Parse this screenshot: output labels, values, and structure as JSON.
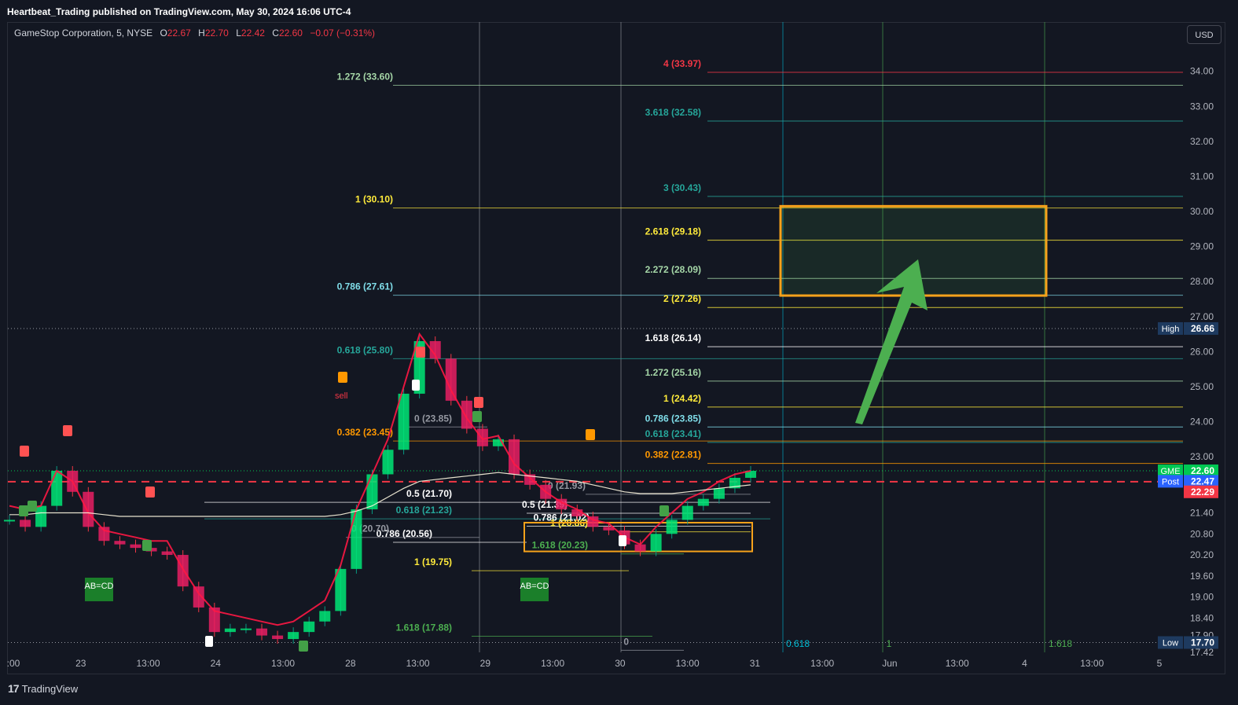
{
  "header": {
    "publish_line": "Heartbeat_Trading published on TradingView.com, May 30, 2024 16:06 UTC-4"
  },
  "legend": {
    "symbol": "GameStop Corporation, 5, NYSE",
    "open_label": "O",
    "open": "22.67",
    "high_label": "H",
    "high": "22.70",
    "low_label": "L",
    "low": "22.42",
    "close_label": "C",
    "close": "22.60",
    "change": "−0.07 (−0.31%)"
  },
  "toolbar": {
    "currency": "USD"
  },
  "footer": {
    "brand": "TradingView",
    "logo_glyph": "17"
  },
  "colors": {
    "background": "#131722",
    "grid": "#2a2e39",
    "up": "#089981",
    "down": "#f23645",
    "price_tag": "#00c853",
    "post_tag": "#2962ff",
    "target_box": "#f7a21b",
    "arrow": "#4caf50"
  },
  "chart_data": {
    "type": "candlestick",
    "symbol": "GME",
    "timeframe": "5",
    "currency": "USD",
    "ylim": [
      17.42,
      34.8
    ],
    "y_ticks": [
      "34.00",
      "33.00",
      "32.00",
      "31.00",
      "30.00",
      "29.00",
      "28.00",
      "27.00",
      "26.00",
      "25.00",
      "24.00",
      "23.00",
      "21.40",
      "20.80",
      "20.20",
      "19.60",
      "19.00",
      "18.40",
      "17.90",
      "17.42"
    ],
    "x_ticks": [
      ":00",
      "23",
      "13:00",
      "24",
      "13:00",
      "28",
      "13:00",
      "29",
      "13:00",
      "30",
      "13:00",
      "31",
      "13:00",
      "Jun",
      "13:00",
      "4",
      "13:00",
      "5"
    ],
    "price_tags": [
      {
        "label": "High",
        "value": "26.66"
      },
      {
        "label": "GME",
        "value": "22.60"
      },
      {
        "label": "Post",
        "value": "22.47"
      },
      {
        "label": "",
        "value": "22.29"
      },
      {
        "label": "Low",
        "value": "17.70"
      }
    ],
    "fib_levels": [
      {
        "label": "1.272 (33.60)",
        "value": 33.6,
        "color": "#a5d6a7"
      },
      {
        "label": "1 (30.10)",
        "value": 30.1,
        "color": "#ffeb3b"
      },
      {
        "label": "0.786 (27.61)",
        "value": 27.61,
        "color": "#80deea"
      },
      {
        "label": "0.618 (25.80)",
        "value": 25.8,
        "color": "#26a69a"
      },
      {
        "label": "0.382 (23.45)",
        "value": 23.45,
        "color": "#ff9800"
      },
      {
        "label": "0 (23.85)",
        "value": 23.85,
        "color": "#9598a1"
      },
      {
        "label": "0.5 (21.70)",
        "value": 21.7,
        "color": "#ffffff"
      },
      {
        "label": "0.618 (21.23)",
        "value": 21.23,
        "color": "#26a69a"
      },
      {
        "label": "0.786 (20.56)",
        "value": 20.56,
        "color": "#ffffff"
      },
      {
        "label": "0 (20.70)",
        "value": 20.7,
        "color": "#9598a1"
      },
      {
        "label": "1 (19.75)",
        "value": 19.75,
        "color": "#ffeb3b"
      },
      {
        "label": "1.618 (17.88)",
        "value": 17.88,
        "color": "#4caf50"
      },
      {
        "label": "0 (21.93)",
        "value": 21.93,
        "color": "#9598a1"
      },
      {
        "label": "0.5 (21.39)",
        "value": 21.39,
        "color": "#ffffff"
      },
      {
        "label": "0.786 (21.02)",
        "value": 21.02,
        "color": "#ffffff"
      },
      {
        "label": "1 (20.86)",
        "value": 20.86,
        "color": "#ffeb3b"
      },
      {
        "label": "1.618 (20.23)",
        "value": 20.23,
        "color": "#4caf50"
      },
      {
        "label": "0",
        "value": 17.48,
        "color": "#9598a1"
      }
    ],
    "extension_levels": [
      {
        "label": "4 (33.97)",
        "value": 33.97,
        "color": "#f23645"
      },
      {
        "label": "3.618 (32.58)",
        "value": 32.58,
        "color": "#26a69a"
      },
      {
        "label": "3 (30.43)",
        "value": 30.43,
        "color": "#26a69a"
      },
      {
        "label": "2.618 (29.18)",
        "value": 29.18,
        "color": "#ffeb3b"
      },
      {
        "label": "2.272 (28.09)",
        "value": 28.09,
        "color": "#a5d6a7"
      },
      {
        "label": "2 (27.26)",
        "value": 27.26,
        "color": "#ffeb3b"
      },
      {
        "label": "1.618 (26.14)",
        "value": 26.14,
        "color": "#ffffff"
      },
      {
        "label": "1.272 (25.16)",
        "value": 25.16,
        "color": "#a5d6a7"
      },
      {
        "label": "1 (24.42)",
        "value": 24.42,
        "color": "#ffeb3b"
      },
      {
        "label": "0.786 (23.85)",
        "value": 23.85,
        "color": "#80deea"
      },
      {
        "label": "0.618 (23.41)",
        "value": 23.41,
        "color": "#26a69a"
      },
      {
        "label": "0.382 (22.81)",
        "value": 22.81,
        "color": "#ff9800"
      }
    ],
    "time_fib": [
      "0.618",
      "1",
      "1.618"
    ],
    "annotations": [
      "AB=CD",
      "AB=CD",
      "sell"
    ],
    "target_zone": {
      "low": 27.6,
      "high": 30.15
    },
    "close_price": 22.6,
    "high_price": 26.66,
    "low_price": 17.7,
    "series": [
      {
        "type": "candles",
        "values": [
          21.2,
          21.0,
          21.6,
          22.6,
          22.0,
          21.0,
          20.6,
          20.5,
          20.4,
          20.3,
          20.2,
          19.3,
          18.7,
          18.0,
          18.1,
          18.1,
          17.9,
          17.8,
          18.0,
          18.3,
          18.6,
          19.8,
          21.5,
          22.5,
          23.2,
          24.8,
          26.3,
          25.8,
          24.6,
          23.8,
          23.3,
          23.5,
          22.5,
          22.2,
          21.8,
          21.5,
          21.3,
          21.0,
          20.9,
          20.5,
          20.3,
          20.8,
          21.2,
          21.6,
          21.8,
          22.1,
          22.4,
          22.6
        ]
      },
      {
        "type": "supertrend",
        "values": [
          21.6,
          21.5,
          21.6,
          22.6,
          22.3,
          21.4,
          20.9,
          20.8,
          20.7,
          20.6,
          20.6,
          19.8,
          19.1,
          18.6,
          18.5,
          18.4,
          18.3,
          18.2,
          18.3,
          18.6,
          18.9,
          19.9,
          21.5,
          22.5,
          23.5,
          25.0,
          26.5,
          25.9,
          24.9,
          24.1,
          23.5,
          23.6,
          22.8,
          22.4,
          22.0,
          21.7,
          21.5,
          21.2,
          21.1,
          20.7,
          20.5,
          21.0,
          21.4,
          21.8,
          22.0,
          22.3,
          22.5,
          22.6
        ]
      },
      {
        "type": "vwap",
        "values": [
          21.35,
          21.35,
          21.4,
          21.4,
          21.4,
          21.4,
          21.35,
          21.3,
          21.3,
          21.3,
          21.3,
          21.3,
          21.3,
          21.3,
          21.3,
          21.3,
          21.3,
          21.3,
          21.3,
          21.3,
          21.3,
          21.35,
          21.45,
          21.6,
          21.85,
          22.1,
          22.3,
          22.35,
          22.4,
          22.45,
          22.5,
          22.55,
          22.5,
          22.45,
          22.4,
          22.35,
          22.3,
          22.2,
          22.1,
          22.0,
          21.95,
          21.95,
          21.95,
          22.0,
          22.05,
          22.1,
          22.15,
          22.2
        ]
      }
    ]
  }
}
